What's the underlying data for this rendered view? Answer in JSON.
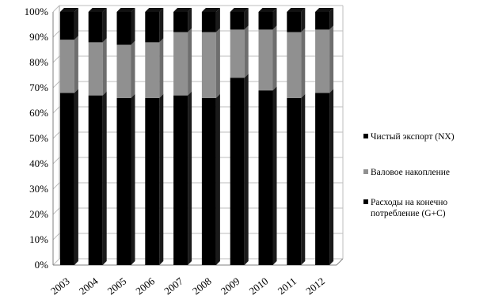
{
  "chart_data": {
    "type": "bar",
    "stacked": true,
    "percent": true,
    "categories": [
      "2003",
      "2004",
      "2005",
      "2006",
      "2007",
      "2008",
      "2009",
      "2010",
      "2011",
      "2012"
    ],
    "series": [
      {
        "name": "Расходы на конечное потребление (G+C)",
        "color": "#000000",
        "values": [
          68,
          67,
          66,
          66,
          67,
          66,
          74,
          69,
          66,
          68
        ]
      },
      {
        "name": "Валовое накопление",
        "color": "#909090",
        "values": [
          21,
          21,
          21,
          22,
          25,
          26,
          19,
          24,
          26,
          25
        ]
      },
      {
        "name": "Чистый экспорт (NX)",
        "color": "#000000",
        "values": [
          11,
          12,
          13,
          12,
          8,
          8,
          7,
          7,
          8,
          7
        ]
      }
    ],
    "yticks": [
      "0%",
      "10%",
      "20%",
      "30%",
      "40%",
      "50%",
      "60%",
      "70%",
      "80%",
      "90%",
      "100%"
    ],
    "ylim": [
      0,
      100
    ],
    "grid": true,
    "legend_position": "right",
    "legend_labels": [
      "Чистый экспорт (NX)",
      "Валовое накопление",
      "Расходы на конечно",
      "потребление (G+C)"
    ]
  }
}
